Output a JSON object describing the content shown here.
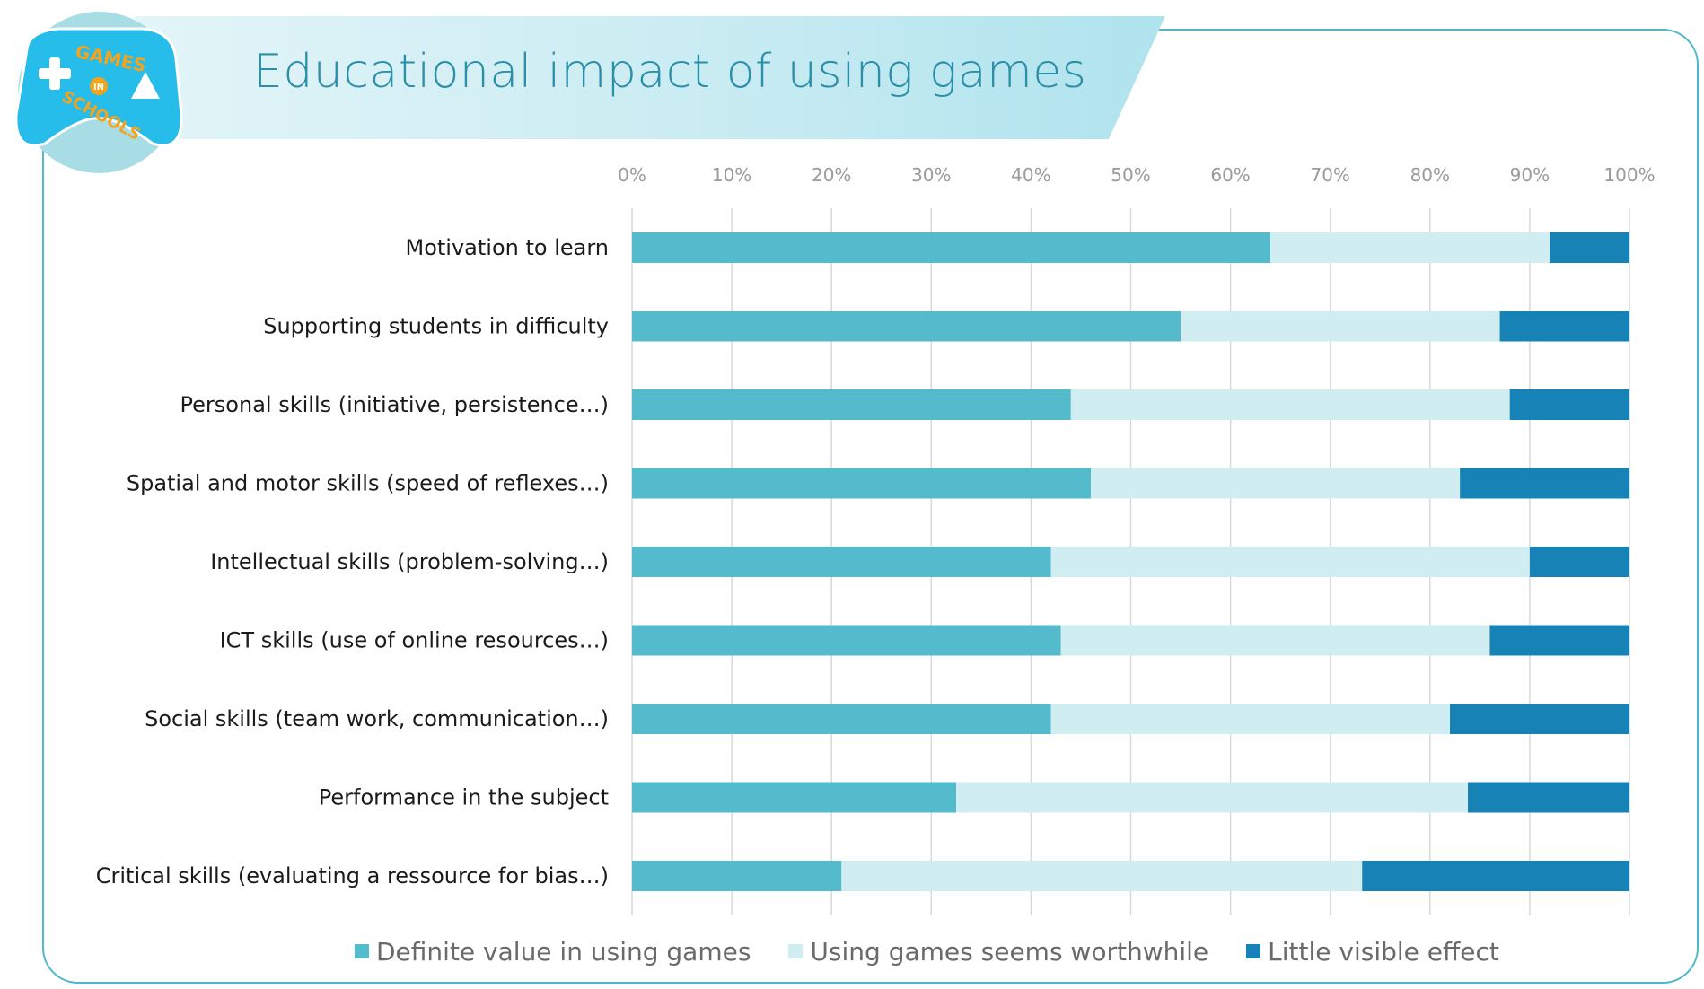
{
  "header": {
    "title": "Educational impact of using games",
    "logo_text": [
      "GAMES",
      "IN",
      "SCHOOLS"
    ]
  },
  "colors": {
    "definite": "#53bbcc",
    "worthwhile": "#d0edf1",
    "little": "#1782b5",
    "frame": "#4fb8c8",
    "title": "#2b8fa8"
  },
  "chart_data": {
    "type": "bar",
    "orientation": "horizontal",
    "stacked": true,
    "title": "Educational impact of using games",
    "xlabel": "",
    "ylabel": "",
    "xlim": [
      0,
      100
    ],
    "x_ticks": [
      "0%",
      "10%",
      "20%",
      "30%",
      "40%",
      "50%",
      "60%",
      "70%",
      "80%",
      "90%",
      "100%"
    ],
    "grid": true,
    "legend_position": "bottom",
    "categories": [
      "Motivation to learn",
      "Supporting students in difficulty",
      "Personal skills (initiative, persistence…)",
      "Spatial and motor skills (speed of reflexes…)",
      "Intellectual skills (problem-solving…)",
      "ICT skills (use of online resources…)",
      "Social skills (team work, communication…)",
      "Performance in the subject",
      "Critical skills (evaluating a ressource for bias…)"
    ],
    "series": [
      {
        "name": "Definite value in using games",
        "values": [
          64,
          55,
          44,
          46,
          42,
          43,
          42,
          32.5,
          21
        ]
      },
      {
        "name": "Using games seems worthwhile",
        "values": [
          28,
          32,
          44,
          37,
          48,
          43,
          40,
          51.3,
          52.2
        ]
      },
      {
        "name": "Little visible effect",
        "values": [
          8,
          13,
          12,
          17,
          10,
          14,
          18,
          16.2,
          26.8
        ]
      }
    ]
  }
}
